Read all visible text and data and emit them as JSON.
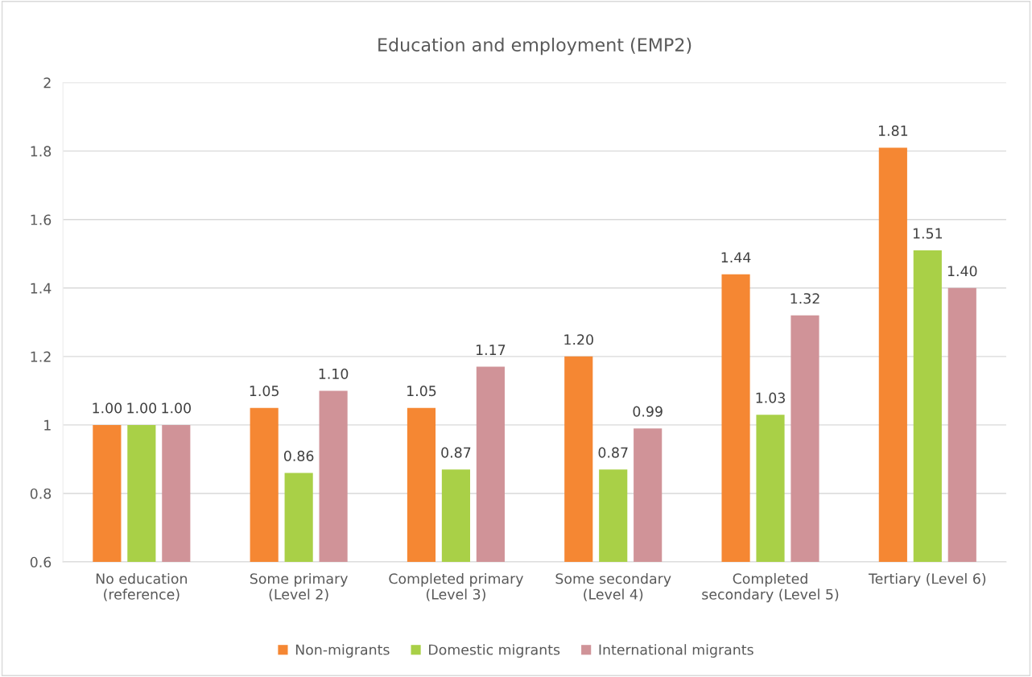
{
  "chart_data": {
    "type": "bar",
    "title": "Education and employment (EMP2)",
    "categories": [
      "No education\n(reference)",
      "Some primary\n(Level 2)",
      "Completed primary\n(Level 3)",
      "Some secondary\n(Level 4)",
      "Completed\nsecondary (Level 5)",
      "Tertiary (Level 6)"
    ],
    "series": [
      {
        "name": "Non-migrants",
        "color": "#f58733",
        "values": [
          1.0,
          1.05,
          1.05,
          1.2,
          1.44,
          1.81
        ],
        "value_labels": [
          "1.00",
          "1.05",
          "1.05",
          "1.20",
          "1.44",
          "1.81"
        ]
      },
      {
        "name": "Domestic migrants",
        "color": "#a9d047",
        "values": [
          1.0,
          0.86,
          0.87,
          0.87,
          1.03,
          1.51
        ],
        "value_labels": [
          "1.00",
          "0.86",
          "0.87",
          "0.87",
          "1.03",
          "1.51"
        ]
      },
      {
        "name": "International migrants",
        "color": "#d09398",
        "values": [
          1.0,
          1.1,
          1.17,
          0.99,
          1.32,
          1.4
        ],
        "value_labels": [
          "1.00",
          "1.10",
          "1.17",
          "0.99",
          "1.32",
          "1.40"
        ]
      }
    ],
    "ylim": [
      0.6,
      2
    ],
    "yticks": [
      0.6,
      0.8,
      1,
      1.2,
      1.4,
      1.6,
      1.8,
      2
    ],
    "grid": "y",
    "legend": "bottom"
  }
}
